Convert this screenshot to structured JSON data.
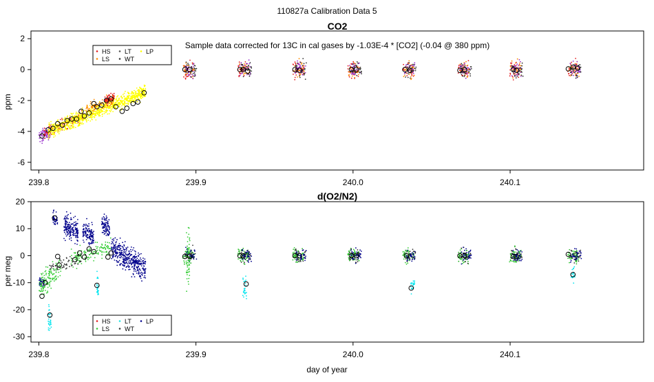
{
  "figure": {
    "super_title": "110827a   Calibration Data 5",
    "xlabel": "day of year"
  },
  "colors": {
    "HS": "#e41a1c",
    "LS": "#33cc33",
    "LT": "#22e5e5",
    "WT": "#333333",
    "LP": "#ffff00",
    "PURPLE": "#9932cc",
    "ORANGE": "#ff8c00",
    "NAVY": "#00008b",
    "GREEN": "#22b022",
    "CYAN": "#00e5ee"
  },
  "chart_data": [
    {
      "type": "scatter",
      "title": "CO2",
      "ylabel": "ppm",
      "annotation": "Sample data corrected for 13C in cal gases by  -1.03E-4 * [CO2] (-0.04 @ 380 ppm)",
      "xlim": [
        239.795,
        240.185
      ],
      "ylim": [
        -6.5,
        2.5
      ],
      "xticks": [
        239.8,
        239.9,
        240.0,
        240.1
      ],
      "xtick_labels": [
        "239.8",
        "239.9",
        "240.0",
        "240.1"
      ],
      "yticks": [
        -6,
        -4,
        -2,
        0,
        2
      ],
      "ytick_labels": [
        "-6",
        "-4",
        "-2",
        "0",
        "2"
      ],
      "legend": {
        "position": "top-left",
        "entries": [
          {
            "label": "HS",
            "color": "#e41a1c"
          },
          {
            "label": "LS",
            "color": "#ff8c00"
          },
          {
            "label": "LT",
            "color": "#555555"
          },
          {
            "label": "WT",
            "color": "#333333"
          },
          {
            "label": "LP",
            "color": "#ffff00"
          }
        ]
      },
      "scatter_groups": [
        {
          "name": "early-purple",
          "color": "#9932cc",
          "x": [
            239.8,
            239.808
          ],
          "y_center": [
            -4.4,
            -4.0
          ],
          "spread": 0.9,
          "count": 80
        },
        {
          "name": "early-red",
          "color": "#e41a1c",
          "x": [
            239.803,
            239.828
          ],
          "y_center": [
            -4.1,
            -3.0
          ],
          "spread": 0.8,
          "count": 120
        },
        {
          "name": "ramp-yellow",
          "color": "#ffff00",
          "x": [
            239.806,
            239.868
          ],
          "y_center": [
            -4.0,
            -1.4
          ],
          "spread": 1.0,
          "count": 950
        },
        {
          "name": "ramp-orange",
          "color": "#ff8c00",
          "x": [
            239.83,
            239.848
          ],
          "y_center": [
            -2.6,
            -1.9
          ],
          "spread": 0.7,
          "count": 90
        },
        {
          "name": "ramp-red",
          "color": "#e41a1c",
          "x": [
            239.842,
            239.848
          ],
          "y_center": [
            -2.0,
            -1.8
          ],
          "spread": 0.7,
          "count": 60
        }
      ],
      "cal_columns": [
        239.895,
        239.93,
        239.965,
        240.0,
        240.035,
        240.07,
        240.103,
        240.14
      ],
      "cal_spread": 1.0,
      "cal_colors": [
        "#e41a1c",
        "#ff8c00",
        "#9932cc",
        "#333333"
      ],
      "markers": [
        {
          "x": 239.802,
          "y": -4.3
        },
        {
          "x": 239.806,
          "y": -3.9
        },
        {
          "x": 239.809,
          "y": -3.8
        },
        {
          "x": 239.812,
          "y": -3.5
        },
        {
          "x": 239.815,
          "y": -3.6
        },
        {
          "x": 239.818,
          "y": -3.3
        },
        {
          "x": 239.821,
          "y": -3.2
        },
        {
          "x": 239.824,
          "y": -3.2
        },
        {
          "x": 239.827,
          "y": -2.7
        },
        {
          "x": 239.829,
          "y": -3.0
        },
        {
          "x": 239.832,
          "y": -2.8
        },
        {
          "x": 239.835,
          "y": -2.2
        },
        {
          "x": 239.837,
          "y": -2.4
        },
        {
          "x": 239.84,
          "y": -2.3
        },
        {
          "x": 239.843,
          "y": -2.0
        },
        {
          "x": 239.846,
          "y": -1.9
        },
        {
          "x": 239.849,
          "y": -2.4
        },
        {
          "x": 239.853,
          "y": -2.7
        },
        {
          "x": 239.856,
          "y": -2.5
        },
        {
          "x": 239.86,
          "y": -2.2
        },
        {
          "x": 239.863,
          "y": -2.1
        },
        {
          "x": 239.867,
          "y": -1.5
        },
        {
          "x": 239.893,
          "y": 0.0
        },
        {
          "x": 239.896,
          "y": 0.0
        },
        {
          "x": 239.928,
          "y": 0.0
        },
        {
          "x": 239.93,
          "y": 0.0
        },
        {
          "x": 239.933,
          "y": -0.1
        },
        {
          "x": 239.963,
          "y": 0.0
        },
        {
          "x": 239.966,
          "y": -0.05
        },
        {
          "x": 239.999,
          "y": 0.0
        },
        {
          "x": 240.002,
          "y": 0.0
        },
        {
          "x": 240.033,
          "y": 0.0
        },
        {
          "x": 240.036,
          "y": -0.05
        },
        {
          "x": 240.068,
          "y": -0.05
        },
        {
          "x": 240.071,
          "y": 0.0
        },
        {
          "x": 240.102,
          "y": 0.0
        },
        {
          "x": 240.104,
          "y": -0.05
        },
        {
          "x": 240.137,
          "y": 0.05
        },
        {
          "x": 240.14,
          "y": 0.15
        },
        {
          "x": 240.143,
          "y": 0.1
        }
      ]
    },
    {
      "type": "scatter",
      "title": "d(O2/N2)",
      "ylabel": "per meg",
      "xlim": [
        239.795,
        240.185
      ],
      "ylim": [
        -32,
        20
      ],
      "xticks": [
        239.8,
        239.9,
        240.0,
        240.1
      ],
      "xtick_labels": [
        "239.8",
        "239.9",
        "240.0",
        "240.1"
      ],
      "yticks": [
        -30,
        -20,
        -10,
        0,
        10,
        20
      ],
      "ytick_labels": [
        "-30",
        "-20",
        "-10",
        "0",
        "10",
        "20"
      ],
      "legend": {
        "position": "bottom-left",
        "entries": [
          {
            "label": "HS",
            "color": "#e41a1c"
          },
          {
            "label": "LS",
            "color": "#33cc33"
          },
          {
            "label": "LT",
            "color": "#22e5e5"
          },
          {
            "label": "WT",
            "color": "#333333"
          },
          {
            "label": "LP",
            "color": "#00008b"
          }
        ]
      },
      "scatter_groups": [
        {
          "name": "navy-early",
          "color": "#00008b",
          "x": [
            239.8,
            239.804
          ],
          "y_center": [
            -9.5,
            -10.0
          ],
          "spread": 4,
          "count": 40
        },
        {
          "name": "navy-cluster-1",
          "color": "#00008b",
          "x": [
            239.809,
            239.812
          ],
          "y_center": [
            14,
            13
          ],
          "spread": 6,
          "count": 40
        },
        {
          "name": "navy-cluster-2",
          "color": "#00008b",
          "x": [
            239.816,
            239.825
          ],
          "y_center": [
            11,
            9
          ],
          "spread": 10,
          "count": 180
        },
        {
          "name": "navy-cluster-3",
          "color": "#00008b",
          "x": [
            239.828,
            239.835
          ],
          "y_center": [
            9,
            7
          ],
          "spread": 8,
          "count": 120
        },
        {
          "name": "navy-cluster-4",
          "color": "#00008b",
          "x": [
            239.84,
            239.845
          ],
          "y_center": [
            12,
            10
          ],
          "spread": 8,
          "count": 90
        },
        {
          "name": "navy-tail",
          "color": "#00008b",
          "x": [
            239.846,
            239.868
          ],
          "y_center": [
            3,
            -5
          ],
          "spread": 10,
          "count": 380
        },
        {
          "name": "green-early",
          "color": "#33cc33",
          "x": [
            239.8,
            239.814
          ],
          "y_center": [
            -12,
            -4
          ],
          "spread": 10,
          "count": 130
        },
        {
          "name": "green-mid",
          "color": "#33cc33",
          "x": [
            239.82,
            239.846
          ],
          "y_center": [
            -1,
            3
          ],
          "spread": 7,
          "count": 140
        },
        {
          "name": "cyan-1",
          "color": "#00e5ee",
          "x": [
            239.806,
            239.808
          ],
          "y_center": [
            -22,
            -24
          ],
          "spread": 10,
          "count": 30
        },
        {
          "name": "cyan-2",
          "color": "#00e5ee",
          "x": [
            239.837,
            239.838
          ],
          "y_center": [
            -11,
            -13
          ],
          "spread": 8,
          "count": 25
        },
        {
          "name": "dark-early",
          "color": "#333333",
          "x": [
            239.806,
            239.83
          ],
          "y_center": [
            -4,
            -1
          ],
          "spread": 5,
          "count": 60
        }
      ],
      "cal_columns": [
        239.895,
        239.93,
        239.965,
        240.0,
        240.035,
        240.07,
        240.103,
        240.14
      ],
      "cal_spread": 5,
      "cal_colors": [
        "#33cc33",
        "#22b022",
        "#333333",
        "#00008b"
      ],
      "cal_special": [
        {
          "x": 239.895,
          "y_center": 0,
          "spread": 28,
          "color": "#33cc33",
          "count": 60
        },
        {
          "x": 239.931,
          "y_center": -12,
          "spread": 10,
          "color": "#00e5ee",
          "count": 25
        },
        {
          "x": 240.038,
          "y_center": -11,
          "spread": 6,
          "color": "#00e5ee",
          "count": 20
        },
        {
          "x": 240.14,
          "y_center": -7,
          "spread": 8,
          "color": "#00e5ee",
          "count": 20
        }
      ],
      "markers": [
        {
          "x": 239.802,
          "y": -15
        },
        {
          "x": 239.804,
          "y": -10
        },
        {
          "x": 239.807,
          "y": -22
        },
        {
          "x": 239.81,
          "y": 14
        },
        {
          "x": 239.812,
          "y": -0.3
        },
        {
          "x": 239.813,
          "y": -3.5
        },
        {
          "x": 239.823,
          "y": -1.5
        },
        {
          "x": 239.826,
          "y": 1.0
        },
        {
          "x": 239.829,
          "y": -0.5
        },
        {
          "x": 239.832,
          "y": 2.5
        },
        {
          "x": 239.835,
          "y": 1.5
        },
        {
          "x": 239.837,
          "y": -11
        },
        {
          "x": 239.844,
          "y": -0.5
        },
        {
          "x": 239.846,
          "y": 1.0
        },
        {
          "x": 239.893,
          "y": -0.3
        },
        {
          "x": 239.896,
          "y": -0.3
        },
        {
          "x": 239.928,
          "y": 0.0
        },
        {
          "x": 239.93,
          "y": 0.0
        },
        {
          "x": 239.932,
          "y": -10.5
        },
        {
          "x": 239.963,
          "y": 0.0
        },
        {
          "x": 239.966,
          "y": 0.0
        },
        {
          "x": 239.999,
          "y": 0.0
        },
        {
          "x": 240.002,
          "y": 0.0
        },
        {
          "x": 240.034,
          "y": 0.0
        },
        {
          "x": 240.037,
          "y": -12
        },
        {
          "x": 240.068,
          "y": 0.0
        },
        {
          "x": 240.071,
          "y": 0.0
        },
        {
          "x": 240.102,
          "y": -0.3
        },
        {
          "x": 240.104,
          "y": -0.3
        },
        {
          "x": 240.137,
          "y": 0.5
        },
        {
          "x": 240.14,
          "y": -7
        }
      ]
    }
  ]
}
